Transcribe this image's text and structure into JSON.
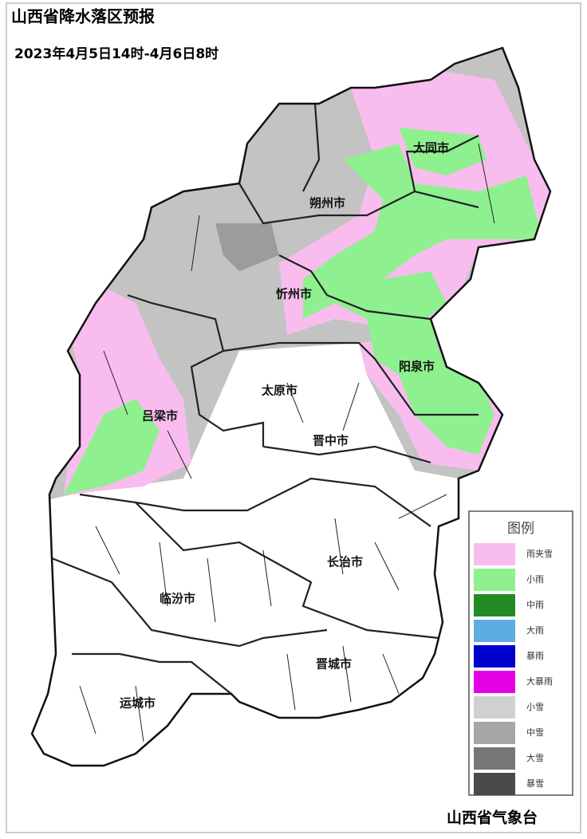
{
  "header": {
    "title": "山西省降水落区预报",
    "subtitle": "2023年4月5日14时-4月6日8时"
  },
  "cities": [
    "大同市",
    "朔州市",
    "忻州市",
    "阳泉市",
    "太原市",
    "吕梁市",
    "晋中市",
    "长治市",
    "临汾市",
    "晋城市",
    "运城市"
  ],
  "legend": {
    "title": "图例",
    "items": [
      {
        "label": "雨夹雪",
        "color": "#f8bdee"
      },
      {
        "label": "小雨",
        "color": "#8ff08f"
      },
      {
        "label": "中雨",
        "color": "#228b22"
      },
      {
        "label": "大雨",
        "color": "#5dade2"
      },
      {
        "label": "暴雨",
        "color": "#0000cc"
      },
      {
        "label": "大暴雨",
        "color": "#e600e6"
      },
      {
        "label": "小雪",
        "color": "#d0d0d0"
      },
      {
        "label": "中雪",
        "color": "#a6a6a6"
      },
      {
        "label": "大雪",
        "color": "#777777"
      },
      {
        "label": "暴雪",
        "color": "#4a4a4a"
      }
    ]
  },
  "footer": "山西省气象台"
}
